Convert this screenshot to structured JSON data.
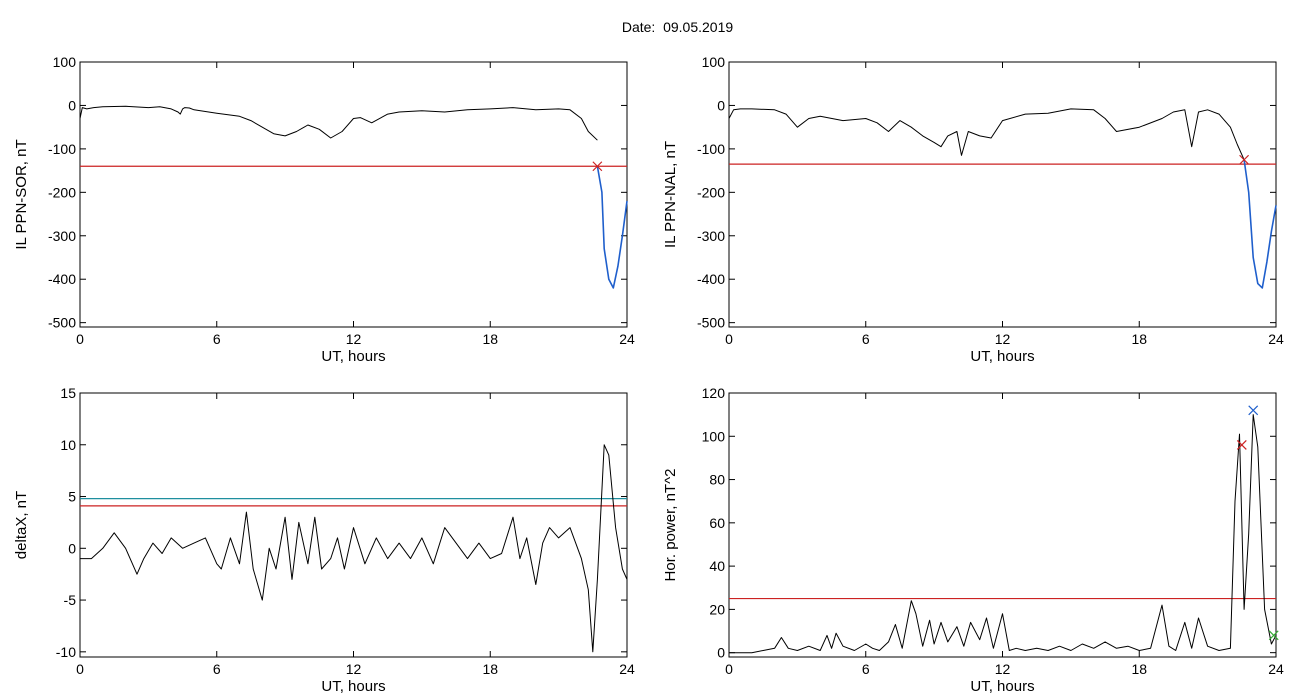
{
  "header": {
    "date_label": "Date:",
    "date_value": "09.05.2019"
  },
  "colors": {
    "axis": "#000000",
    "data": "#000000",
    "red": "#cc2222",
    "blue": "#1f5fcc",
    "cyan": "#1f8f9f",
    "green": "#33aa33"
  },
  "chart_data": [
    {
      "id": "sor",
      "type": "line",
      "title": "",
      "xlabel": "UT, hours",
      "ylabel": "IL PPN-SOR, nT",
      "xlim": [
        0,
        24
      ],
      "ylim": [
        -510,
        100
      ],
      "xticks": [
        0,
        6,
        12,
        18,
        24
      ],
      "yticks": [
        100,
        0,
        -100,
        -200,
        -300,
        -400,
        -500
      ],
      "series": [
        {
          "color": "black",
          "x": [
            0,
            0.1,
            0.3,
            0.6,
            1,
            2,
            3,
            3.5,
            4,
            4.3,
            4.4,
            4.5,
            4.6,
            4.8,
            5,
            6,
            7,
            7.5,
            8,
            8.5,
            9,
            9.5,
            10,
            10.5,
            11,
            11.5,
            12,
            12.3,
            12.8,
            13.5,
            14,
            15,
            16,
            17,
            18,
            19,
            20,
            21,
            21.5,
            22,
            22.3,
            22.7
          ],
          "y": [
            -30,
            -5,
            -8,
            -5,
            -3,
            -2,
            -5,
            -3,
            -8,
            -15,
            -20,
            -8,
            -5,
            -6,
            -10,
            -18,
            -25,
            -35,
            -50,
            -65,
            -70,
            -60,
            -45,
            -55,
            -75,
            -60,
            -30,
            -28,
            -40,
            -20,
            -15,
            -12,
            -15,
            -10,
            -8,
            -5,
            -10,
            -8,
            -10,
            -30,
            -60,
            -80
          ]
        },
        {
          "color": "blue",
          "x": [
            22.7,
            22.9,
            23,
            23.2,
            23.4,
            23.6,
            23.8,
            24
          ],
          "y": [
            -140,
            -200,
            -330,
            -400,
            -420,
            -370,
            -300,
            -220
          ]
        }
      ],
      "threshold": -140,
      "markers": [
        {
          "x": 22.7,
          "y": -140,
          "symbol": "x",
          "color": "red"
        }
      ]
    },
    {
      "id": "nal",
      "type": "line",
      "title": "",
      "xlabel": "UT, hours",
      "ylabel": "IL PPN-NAL, nT",
      "xlim": [
        0,
        24
      ],
      "ylim": [
        -510,
        100
      ],
      "xticks": [
        0,
        6,
        12,
        18,
        24
      ],
      "yticks": [
        100,
        0,
        -100,
        -200,
        -300,
        -400,
        -500
      ],
      "series": [
        {
          "color": "black",
          "x": [
            0,
            0.2,
            0.5,
            1,
            2,
            2.5,
            3,
            3.5,
            4,
            5,
            6,
            6.5,
            7,
            7.5,
            8,
            8.5,
            9,
            9.3,
            9.6,
            10,
            10.2,
            10.5,
            11,
            11.5,
            12,
            13,
            14,
            15,
            16,
            16.5,
            17,
            18,
            19,
            19.5,
            20,
            20.3,
            20.6,
            21,
            21.5,
            22,
            22.3,
            22.6
          ],
          "y": [
            -30,
            -10,
            -8,
            -8,
            -10,
            -20,
            -50,
            -30,
            -25,
            -35,
            -30,
            -40,
            -60,
            -35,
            -50,
            -70,
            -85,
            -95,
            -70,
            -60,
            -115,
            -60,
            -70,
            -75,
            -35,
            -20,
            -18,
            -8,
            -10,
            -30,
            -60,
            -50,
            -30,
            -15,
            -10,
            -95,
            -15,
            -10,
            -20,
            -50,
            -90,
            -125
          ]
        },
        {
          "color": "blue",
          "x": [
            22.6,
            22.8,
            23,
            23.2,
            23.4,
            23.6,
            23.8,
            24
          ],
          "y": [
            -125,
            -200,
            -350,
            -410,
            -420,
            -360,
            -290,
            -230
          ]
        }
      ],
      "threshold": -135,
      "markers": [
        {
          "x": 22.6,
          "y": -125,
          "symbol": "x",
          "color": "red"
        }
      ]
    },
    {
      "id": "deltax",
      "type": "line",
      "title": "",
      "xlabel": "UT, hours",
      "ylabel": "deltaX, nT",
      "xlim": [
        0,
        24
      ],
      "ylim": [
        -10.5,
        15
      ],
      "xticks": [
        0,
        6,
        12,
        18,
        24
      ],
      "yticks": [
        15,
        10,
        5,
        0,
        -5,
        -10
      ],
      "series": [
        {
          "color": "black",
          "x": [
            0,
            0.5,
            1,
            1.5,
            2,
            2.5,
            2.8,
            3.2,
            3.6,
            4,
            4.5,
            5,
            5.5,
            6,
            6.2,
            6.6,
            7,
            7.3,
            7.6,
            8,
            8.3,
            8.6,
            9,
            9.3,
            9.6,
            10,
            10.3,
            10.6,
            11,
            11.3,
            11.6,
            12,
            12.5,
            13,
            13.5,
            14,
            14.5,
            15,
            15.5,
            16,
            16.5,
            17,
            17.5,
            18,
            18.5,
            19,
            19.3,
            19.6,
            20,
            20.3,
            20.6,
            21,
            21.5,
            22,
            22.3,
            22.5,
            22.7,
            23,
            23.2,
            23.5,
            23.8,
            24
          ],
          "y": [
            -1,
            -1,
            0,
            1.5,
            0,
            -2.5,
            -1,
            0.5,
            -0.5,
            1,
            0,
            0.5,
            1,
            -1.5,
            -2,
            1,
            -1.5,
            3.5,
            -2,
            -5,
            0,
            -2,
            3,
            -3,
            2.5,
            -1.5,
            3,
            -2,
            -1,
            1,
            -2,
            2,
            -1.5,
            1,
            -1,
            0.5,
            -1,
            1,
            -1.5,
            2,
            0.5,
            -1,
            0.5,
            -1,
            -0.5,
            3,
            -1,
            1,
            -3.5,
            0.5,
            2,
            1,
            2,
            -1,
            -4,
            -10,
            -3,
            10,
            9,
            2,
            -2,
            -3
          ]
        }
      ],
      "thresholds": [
        {
          "y": 4.8,
          "color": "cyan"
        },
        {
          "y": 4.1,
          "color": "red"
        }
      ]
    },
    {
      "id": "power",
      "type": "line",
      "title": "",
      "xlabel": "UT, hours",
      "ylabel": "Hor. power, nT^2",
      "xlim": [
        0,
        24
      ],
      "ylim": [
        -2,
        120
      ],
      "xticks": [
        0,
        6,
        12,
        18,
        24
      ],
      "yticks": [
        120,
        100,
        80,
        60,
        40,
        20,
        0
      ],
      "series": [
        {
          "color": "black",
          "x": [
            0,
            1,
            1.5,
            2,
            2.3,
            2.6,
            3,
            3.5,
            4,
            4.3,
            4.5,
            4.7,
            5,
            5.5,
            6,
            6.3,
            6.6,
            7,
            7.3,
            7.6,
            8,
            8.2,
            8.5,
            8.8,
            9,
            9.3,
            9.6,
            10,
            10.3,
            10.6,
            11,
            11.3,
            11.6,
            12,
            12.3,
            12.6,
            13,
            13.5,
            14,
            14.5,
            15,
            15.5,
            16,
            16.5,
            17,
            17.5,
            18,
            18.5,
            19,
            19.3,
            19.6,
            20,
            20.3,
            20.6,
            21,
            21.5,
            22,
            22.2,
            22.4,
            22.6,
            22.8,
            23,
            23.2,
            23.5,
            23.8,
            24
          ],
          "y": [
            0,
            0,
            1,
            2,
            7,
            2,
            1,
            3,
            1,
            8,
            2,
            9,
            3,
            1,
            4,
            2,
            1,
            5,
            13,
            2,
            24,
            18,
            3,
            15,
            4,
            14,
            5,
            12,
            3,
            14,
            6,
            16,
            2,
            18,
            1,
            2,
            1,
            2,
            1,
            3,
            1,
            4,
            2,
            5,
            2,
            3,
            1,
            2,
            22,
            3,
            1,
            14,
            2,
            16,
            3,
            1,
            2,
            70,
            101,
            20,
            55,
            110,
            95,
            20,
            4,
            8
          ]
        }
      ],
      "threshold": 25,
      "markers": [
        {
          "x": 22.5,
          "y": 96,
          "symbol": "x",
          "color": "red"
        },
        {
          "x": 23,
          "y": 112,
          "symbol": "x",
          "color": "blue"
        },
        {
          "x": 23.9,
          "y": 8,
          "symbol": "x",
          "color": "green"
        }
      ]
    }
  ]
}
